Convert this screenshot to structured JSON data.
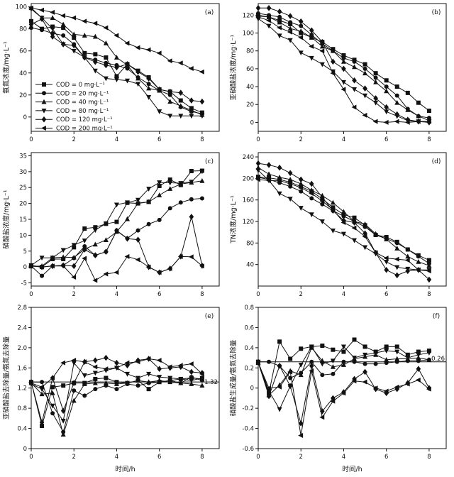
{
  "figure": {
    "background": "#ffffff",
    "line_color": "#111111",
    "x_axis_label": "时间/h",
    "x_tick_labels": [
      "0",
      "2",
      "4",
      "6",
      "8"
    ],
    "x_values": [
      0,
      0.5,
      1,
      1.5,
      2,
      2.5,
      3,
      3.5,
      4,
      4.5,
      5,
      5.5,
      6,
      6.5,
      7,
      7.5,
      8
    ],
    "xlim": [
      0,
      8.8
    ],
    "legend": {
      "position": "lower-left-of-panel-a",
      "entries": [
        {
          "marker": "square",
          "label": "COD = 0 mg·L⁻¹"
        },
        {
          "marker": "circle",
          "label": "COD = 20 mg·L⁻¹"
        },
        {
          "marker": "triangle-up",
          "label": "COD = 40 mg·L⁻¹"
        },
        {
          "marker": "triangle-down",
          "label": "COD = 80 mg·L⁻¹"
        },
        {
          "marker": "diamond",
          "label": "COD = 120 mg·L⁻¹"
        },
        {
          "marker": "triangle-left",
          "label": "COD = 200 mg·L⁻¹"
        }
      ]
    }
  },
  "chart_data": [
    {
      "id": "a",
      "type": "line",
      "panel_label": "(a)",
      "ylabel": "氨氮浓度/mg·L⁻¹",
      "ylim": [
        -13,
        103
      ],
      "ytick_labels": [
        "0",
        "20",
        "40",
        "60",
        "80",
        "100"
      ],
      "has_legend": true,
      "xlabel": "",
      "series": [
        {
          "name": "COD = 0 mg·L⁻¹",
          "marker": "square",
          "values": [
            87,
            80,
            82,
            81,
            72,
            58,
            57,
            54,
            37,
            48,
            42,
            36,
            25,
            23,
            15,
            8,
            4
          ]
        },
        {
          "name": "COD = 20 mg·L⁻¹",
          "marker": "circle",
          "values": [
            81,
            79,
            76,
            74,
            66,
            54,
            52,
            49,
            47,
            44,
            36,
            30,
            24,
            20,
            9,
            5,
            3
          ]
        },
        {
          "name": "COD = 40 mg·L⁻¹",
          "marker": "triangle-up",
          "values": [
            99,
            90,
            90,
            84,
            75,
            74,
            73,
            67,
            54,
            47,
            35,
            26,
            24,
            14,
            10,
            6,
            2
          ]
        },
        {
          "name": "COD = 80 mg·L⁻¹",
          "marker": "triangle-down",
          "values": [
            98,
            90,
            80,
            66,
            60,
            54,
            42,
            35,
            34,
            33,
            30,
            18,
            5,
            1,
            1,
            1,
            1
          ]
        },
        {
          "name": "COD = 120 mg·L⁻¹",
          "marker": "diamond",
          "values": [
            84,
            89,
            73,
            66,
            65,
            54,
            50,
            47,
            45,
            48,
            41,
            35,
            25,
            23,
            22,
            15,
            14
          ]
        },
        {
          "name": "COD = 200 mg·L⁻¹",
          "marker": "triangle-left",
          "values": [
            99,
            97,
            95,
            92,
            90,
            87,
            85,
            81,
            74,
            67,
            63,
            61,
            58,
            51,
            49,
            44,
            41
          ]
        }
      ]
    },
    {
      "id": "b",
      "type": "line",
      "panel_label": "(b)",
      "ylabel": "亚硝酸盐浓度/mg·L⁻¹",
      "ylim": [
        -10,
        133
      ],
      "ytick_labels": [
        "0",
        "20",
        "40",
        "60",
        "80",
        "100",
        "120"
      ],
      "has_legend": false,
      "xlabel": "",
      "series": [
        {
          "name": "COD = 0 mg·L⁻¹",
          "marker": "square",
          "values": [
            120,
            118,
            114,
            110,
            100,
            95,
            90,
            82,
            75,
            70,
            65,
            55,
            47,
            40,
            33,
            22,
            13
          ]
        },
        {
          "name": "COD = 20 mg·L⁻¹",
          "marker": "circle",
          "values": [
            122,
            120,
            118,
            112,
            108,
            98,
            88,
            80,
            72,
            68,
            60,
            50,
            40,
            30,
            15,
            7,
            5
          ]
        },
        {
          "name": "COD = 40 mg·L⁻¹",
          "marker": "triangle-up",
          "values": [
            119,
            118,
            112,
            105,
            102,
            95,
            85,
            80,
            68,
            62,
            55,
            45,
            35,
            22,
            14,
            7,
            2
          ]
        },
        {
          "name": "COD = 80 mg·L⁻¹",
          "marker": "triangle-down",
          "values": [
            116,
            108,
            97,
            92,
            78,
            72,
            65,
            57,
            45,
            37,
            30,
            22,
            12,
            7,
            2,
            1,
            1
          ]
        },
        {
          "name": "COD = 120 mg·L⁻¹",
          "marker": "diamond",
          "values": [
            128,
            128,
            124,
            119,
            113,
            103,
            90,
            68,
            60,
            47,
            38,
            27,
            17,
            9,
            3,
            1,
            0
          ]
        },
        {
          "name": "COD = 200 mg·L⁻¹",
          "marker": "triangle-left",
          "values": [
            118,
            114,
            106,
            101,
            95,
            85,
            80,
            55,
            37,
            17,
            8,
            1,
            0,
            1,
            0,
            1,
            1
          ]
        }
      ]
    },
    {
      "id": "c",
      "type": "line",
      "panel_label": "(c)",
      "ylabel": "硝酸盐浓度/mg·L⁻¹",
      "ylim": [
        -6,
        36
      ],
      "ytick_labels": [
        "-5",
        "0",
        "5",
        "10",
        "15",
        "20",
        "25",
        "30",
        "35"
      ],
      "has_legend": false,
      "xlabel": "",
      "series": [
        {
          "name": "COD = 0 mg·L⁻¹",
          "marker": "square",
          "values": [
            0.5,
            0,
            2.5,
            2.5,
            6.2,
            12.1,
            12.5,
            13.6,
            14.2,
            20.2,
            20,
            20.5,
            25.5,
            27.5,
            25.8,
            30.2,
            30.3
          ]
        },
        {
          "name": "COD = 20 mg·L⁻¹",
          "marker": "circle",
          "values": [
            0.3,
            -2.8,
            0.3,
            0.5,
            2.8,
            6.5,
            3.7,
            4.8,
            11.5,
            9,
            11.5,
            13.5,
            14.8,
            18.5,
            20.3,
            21.3,
            21.6
          ]
        },
        {
          "name": "COD = 40 mg·L⁻¹",
          "marker": "triangle-up",
          "values": [
            0.2,
            0.3,
            2.9,
            3.1,
            3,
            5.6,
            7.1,
            8.5,
            11.1,
            15.1,
            20.1,
            20.5,
            22.6,
            24.6,
            26.1,
            26.6,
            27.1
          ]
        },
        {
          "name": "COD = 80 mg·L⁻¹",
          "marker": "triangle-down",
          "values": [
            0.5,
            2.9,
            2.9,
            5.3,
            6.9,
            8.3,
            11.6,
            13.7,
            19.6,
            20.3,
            21.1,
            24.6,
            26.6,
            26.5,
            26.4,
            26.8,
            30.1
          ]
        },
        {
          "name": "COD = 120 mg·L⁻¹",
          "marker": "diamond",
          "values": [
            0.3,
            0,
            0.3,
            0.5,
            0.3,
            5.5,
            3.7,
            4.8,
            11.4,
            8.9,
            8.6,
            0,
            -1.7,
            -0.5,
            3.3,
            15.8,
            0.4
          ]
        },
        {
          "name": "COD = 200 mg·L⁻¹",
          "marker": "triangle-left",
          "values": [
            0.3,
            0,
            0.3,
            0.3,
            -3.2,
            2.7,
            -4.2,
            -2.2,
            -1.7,
            3.3,
            2.3,
            0,
            -1.7,
            -0.5,
            3.3,
            3.2,
            0.3
          ]
        }
      ]
    },
    {
      "id": "d",
      "type": "line",
      "panel_label": "(d)",
      "ylabel": "TN浓度/mg·L⁻¹",
      "ylim": [
        0,
        248
      ],
      "ytick_labels": [
        "40",
        "80",
        "120",
        "160",
        "200",
        "240"
      ],
      "has_legend": false,
      "xlabel": "",
      "series": [
        {
          "name": "COD = 0 mg·L⁻¹",
          "marker": "square",
          "values": [
            203,
            201,
            198,
            193,
            185,
            176,
            162,
            146,
            133,
            127,
            113,
            95,
            91,
            82,
            68,
            57,
            48
          ]
        },
        {
          "name": "COD = 20 mg·L⁻¹",
          "marker": "circle",
          "values": [
            202,
            198,
            192,
            185,
            176,
            163,
            152,
            140,
            130,
            120,
            110,
            95,
            88,
            80,
            68,
            55,
            42
          ]
        },
        {
          "name": "COD = 40 mg·L⁻¹",
          "marker": "triangle-up",
          "values": [
            220,
            208,
            202,
            198,
            190,
            178,
            168,
            155,
            138,
            120,
            115,
            97,
            87,
            70,
            55,
            45,
            38
          ]
        },
        {
          "name": "COD = 80 mg·L⁻¹",
          "marker": "triangle-down",
          "values": [
            215,
            196,
            172,
            162,
            145,
            133,
            120,
            103,
            97,
            85,
            72,
            60,
            45,
            35,
            32,
            30,
            30
          ]
        },
        {
          "name": "COD = 120 mg·L⁻¹",
          "marker": "diamond",
          "values": [
            228,
            225,
            220,
            210,
            198,
            190,
            165,
            140,
            122,
            118,
            98,
            62,
            30,
            20,
            28,
            30,
            12
          ]
        },
        {
          "name": "COD = 200 mg·L⁻¹",
          "marker": "triangle-left",
          "values": [
            198,
            196,
            196,
            190,
            183,
            172,
            158,
            142,
            118,
            108,
            92,
            62,
            52,
            50,
            48,
            30,
            28
          ]
        }
      ]
    },
    {
      "id": "e",
      "type": "line",
      "panel_label": "(e)",
      "ylabel": "亚硝酸盐去除量/氨氮去除量",
      "ylim": [
        0,
        2.8
      ],
      "ytick_labels": [
        "0",
        "0.4",
        "0.8",
        "1.2",
        "1.6",
        "2.0",
        "2.4",
        "2.8"
      ],
      "has_legend": false,
      "xlabel": "时间/h",
      "ref_line": {
        "value": 1.32,
        "label": "1.32",
        "label_side": "on-line"
      },
      "series": [
        {
          "name": "COD = 0 mg·L⁻¹",
          "marker": "square",
          "values": [
            1.32,
            0.45,
            1.22,
            1.25,
            1.3,
            1.3,
            1.38,
            1.4,
            1.32,
            1.3,
            1.35,
            1.18,
            1.32,
            1.35,
            1.38,
            1.4,
            1.38
          ]
        },
        {
          "name": "COD = 20 mg·L⁻¹",
          "marker": "circle",
          "values": [
            1.32,
            1.32,
            0.7,
            0.33,
            1.15,
            1.05,
            1.18,
            1.25,
            1.18,
            1.28,
            1.25,
            1.3,
            1.32,
            1.35,
            1.3,
            1.42,
            1.35
          ]
        },
        {
          "name": "COD = 40 mg·L⁻¹",
          "marker": "triangle-up",
          "values": [
            1.3,
            1.08,
            1.1,
            0.28,
            0.95,
            1.28,
            1.3,
            1.3,
            1.28,
            1.3,
            1.35,
            1.32,
            1.35,
            1.32,
            1.3,
            1.28,
            1.25
          ]
        },
        {
          "name": "COD = 80 mg·L⁻¹",
          "marker": "triangle-down",
          "values": [
            1.28,
            1.18,
            0.85,
            0.55,
            1.7,
            1.45,
            1.5,
            1.55,
            1.6,
            1.48,
            1.4,
            1.48,
            1.42,
            1.4,
            1.38,
            1.35,
            1.4
          ]
        },
        {
          "name": "COD = 120 mg·L⁻¹",
          "marker": "diamond",
          "values": [
            1.32,
            0.52,
            1.4,
            0.75,
            1.3,
            1.72,
            1.75,
            1.8,
            1.7,
            1.65,
            1.75,
            1.78,
            1.58,
            1.6,
            1.62,
            1.52,
            1.5
          ]
        },
        {
          "name": "COD = 200 mg·L⁻¹",
          "marker": "triangle-left",
          "values": [
            1.3,
            1.22,
            1.4,
            1.7,
            1.75,
            1.72,
            1.62,
            1.58,
            1.6,
            1.7,
            1.72,
            1.78,
            1.75,
            1.62,
            1.65,
            1.68,
            1.48
          ]
        }
      ]
    },
    {
      "id": "f",
      "type": "line",
      "panel_label": "(f)",
      "ylabel": "硝酸盐生成量/氨氮去除量",
      "ylim": [
        -0.6,
        0.8
      ],
      "ytick_labels": [
        "-0.6",
        "-0.4",
        "-0.2",
        "0",
        "0.2",
        "0.4",
        "0.6",
        "0.8"
      ],
      "has_legend": false,
      "xlabel": "时间/h",
      "ref_line": {
        "value": 0.26,
        "label": "0.26",
        "label_side": "above-line"
      },
      "series": [
        {
          "name": "COD = 0 mg·L⁻¹",
          "marker": "square",
          "values": [
            0.26,
            -0.05,
            0.46,
            0.29,
            0.39,
            0.41,
            0.42,
            0.38,
            0.36,
            0.48,
            0.41,
            0.36,
            0.41,
            0.41,
            0.33,
            0.36,
            0.37
          ]
        },
        {
          "name": "COD = 20 mg·L⁻¹",
          "marker": "circle",
          "values": [
            0.26,
            0.26,
            0.22,
            0.1,
            0.15,
            0.26,
            0.13,
            0.14,
            0.26,
            0.26,
            0.24,
            0.24,
            0.25,
            0.26,
            0.27,
            0.27,
            0.28
          ]
        },
        {
          "name": "COD = 40 mg·L⁻¹",
          "marker": "triangle-up",
          "values": [
            0.25,
            -0.07,
            0.03,
            0.17,
            0.13,
            0.4,
            0.27,
            0.21,
            0.23,
            0.29,
            0.31,
            0.33,
            0.28,
            0.29,
            0.29,
            0.3,
            0.28
          ]
        },
        {
          "name": "COD = 80 mg·L⁻¹",
          "marker": "triangle-down",
          "values": [
            0.26,
            -0.03,
            -0.21,
            0.02,
            0.23,
            0.41,
            0.24,
            0.27,
            0.41,
            0.3,
            0.33,
            0.35,
            0.37,
            0.36,
            0.3,
            0.33,
            0.35
          ]
        },
        {
          "name": "COD = 120 mg·L⁻¹",
          "marker": "diamond",
          "values": [
            0.26,
            -0.08,
            0.22,
            0.02,
            -0.35,
            0.22,
            -0.23,
            -0.1,
            -0.04,
            0.09,
            0.16,
            -0.01,
            -0.05,
            -0.01,
            0.05,
            0.19,
            0
          ]
        },
        {
          "name": "COD = 200 mg·L⁻¹",
          "marker": "triangle-left",
          "values": [
            0.25,
            0,
            0.01,
            0.16,
            -0.47,
            0.17,
            -0.29,
            -0.13,
            -0.05,
            0.07,
            0.06,
            0,
            -0.03,
            0.01,
            0.04,
            0.08,
            -0.01
          ]
        }
      ]
    }
  ]
}
